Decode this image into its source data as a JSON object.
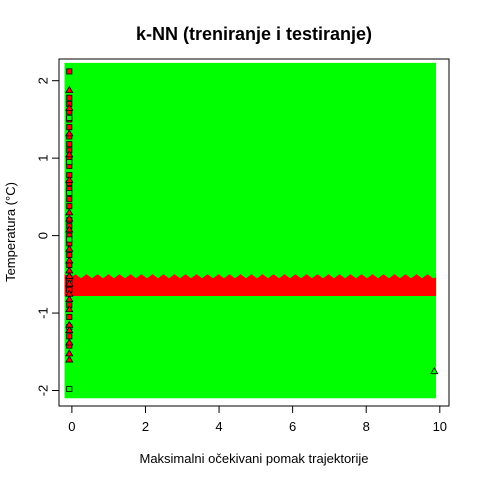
{
  "chart_data": {
    "type": "scatter",
    "title": "k-NN (treniranje i testiranje)",
    "xlabel": "Maksimalni očekivani pomak trajektorije",
    "ylabel": "Temperatura (°C)",
    "xlim": [
      -0.35,
      10.25
    ],
    "ylim": [
      -2.2,
      2.28
    ],
    "x_ticks": [
      "0",
      "2",
      "4",
      "6",
      "8",
      "10"
    ],
    "y_ticks": [
      "-2",
      "-1",
      "0",
      "1",
      "2"
    ],
    "x_tick_values": [
      0,
      2,
      4,
      6,
      8,
      10
    ],
    "y_tick_values": [
      -2,
      -1,
      0,
      1,
      2
    ],
    "grid": false,
    "regions": [
      {
        "class": "class_green",
        "color": "#00ff00",
        "x": [
          -0.2,
          9.9
        ],
        "y": [
          -2.1,
          2.23
        ]
      },
      {
        "class": "class_red",
        "color": "#ff0000",
        "x": [
          -0.2,
          9.9
        ],
        "y": [
          -0.78,
          -0.5
        ],
        "note_shape": "band_with_wavy_top"
      }
    ],
    "series": [
      {
        "marker": "square",
        "fill": "#ff0000",
        "stroke": "#000000",
        "points": [
          [
            -0.07,
            2.12
          ],
          [
            -0.07,
            1.78
          ],
          [
            -0.07,
            1.7
          ],
          [
            -0.07,
            1.6
          ],
          [
            -0.07,
            1.5
          ],
          [
            -0.07,
            1.4
          ],
          [
            -0.07,
            1.28
          ],
          [
            -0.07,
            1.18
          ],
          [
            -0.07,
            1.1
          ],
          [
            -0.07,
            1.0
          ],
          [
            -0.07,
            0.9
          ],
          [
            -0.07,
            0.78
          ],
          [
            -0.07,
            0.68
          ],
          [
            -0.07,
            0.6
          ],
          [
            -0.07,
            0.47
          ],
          [
            -0.07,
            0.38
          ],
          [
            -0.07,
            0.2
          ],
          [
            -0.07,
            0.12
          ],
          [
            -0.07,
            0.0
          ],
          [
            -0.07,
            -0.1
          ],
          [
            -0.07,
            -0.25
          ],
          [
            -0.07,
            -0.38
          ],
          [
            -0.07,
            -0.55
          ],
          [
            -0.07,
            -0.7
          ],
          [
            -0.07,
            -0.9
          ],
          [
            -0.07,
            -1.05
          ],
          [
            -0.07,
            -1.3
          ],
          [
            -0.07,
            -1.42
          ]
        ]
      },
      {
        "marker": "square",
        "fill": "#00ff00",
        "stroke": "#000000",
        "points": [
          [
            -0.07,
            1.52
          ],
          [
            -0.07,
            0.95
          ],
          [
            -0.07,
            0.55
          ],
          [
            -0.07,
            -0.05
          ],
          [
            -0.07,
            -0.62
          ],
          [
            -0.07,
            -1.18
          ],
          [
            -0.07,
            -1.98
          ]
        ]
      },
      {
        "marker": "triangle",
        "fill": "#ff0000",
        "stroke": "#000000",
        "points": [
          [
            -0.07,
            1.88
          ],
          [
            -0.07,
            1.65
          ],
          [
            -0.07,
            1.32
          ],
          [
            -0.07,
            1.05
          ],
          [
            -0.07,
            0.72
          ],
          [
            -0.07,
            0.3
          ],
          [
            -0.07,
            0.22
          ],
          [
            -0.07,
            0.08
          ],
          [
            -0.07,
            -0.17
          ],
          [
            -0.07,
            -0.32
          ],
          [
            -0.07,
            -0.45
          ],
          [
            -0.07,
            -0.52
          ],
          [
            -0.07,
            -0.62
          ],
          [
            -0.07,
            -0.75
          ],
          [
            -0.07,
            -0.82
          ],
          [
            -0.07,
            -0.95
          ],
          [
            -0.07,
            -1.15
          ],
          [
            -0.07,
            -1.22
          ],
          [
            -0.07,
            -1.38
          ],
          [
            -0.07,
            -1.52
          ],
          [
            -0.07,
            -1.6
          ]
        ]
      },
      {
        "marker": "triangle",
        "fill": "#00ff00",
        "stroke": "#000000",
        "points": [
          [
            9.85,
            -1.75
          ]
        ]
      }
    ]
  }
}
